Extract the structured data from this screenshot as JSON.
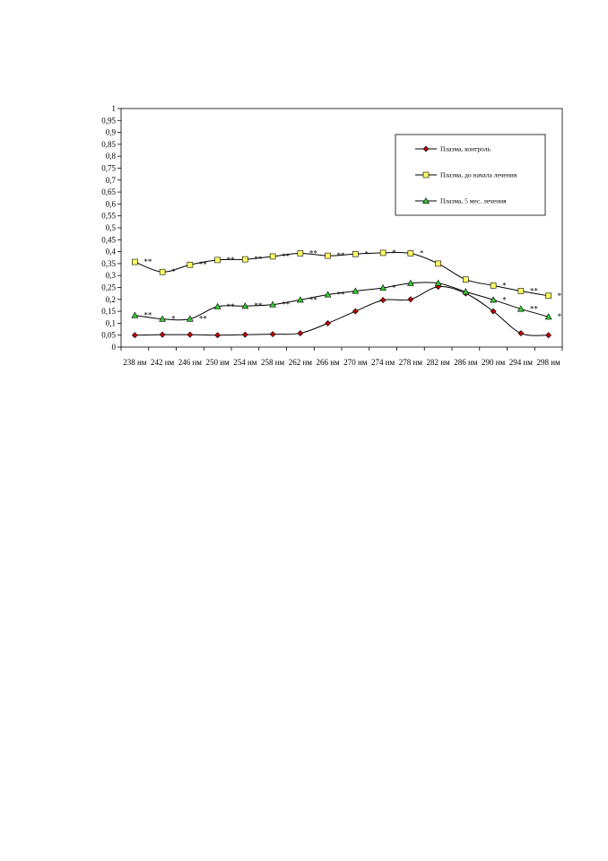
{
  "chart_data": {
    "type": "line",
    "categories": [
      "238 нм",
      "242 нм",
      "246 нм",
      "250 нм",
      "254 нм",
      "258 нм",
      "262 нм",
      "266 нм",
      "270 нм",
      "274 нм",
      "278 нм",
      "282 нм",
      "286 нм",
      "290 нм",
      "294 нм",
      "298 нм"
    ],
    "ylim": [
      0,
      1
    ],
    "yticks": [
      "0",
      "0,05",
      "0,1",
      "0,15",
      "0,2",
      "0,25",
      "0,3",
      "0,35",
      "0,4",
      "0,45",
      "0,5",
      "0,55",
      "0,6",
      "0,65",
      "0,7",
      "0,75",
      "0,8",
      "0,85",
      "0,9",
      "0,95",
      "1"
    ],
    "grid": false,
    "legend_position": "top-right",
    "series": [
      {
        "name": "Плазма, контроль",
        "color": "#c00000",
        "marker": "diamond",
        "values": [
          0.05,
          0.052,
          0.052,
          0.05,
          0.052,
          0.054,
          0.058,
          0.1,
          0.15,
          0.197,
          0.2,
          0.253,
          0.225,
          0.15,
          0.058,
          0.05
        ],
        "annotations": [
          "",
          "",
          "",
          "",
          "",
          "",
          "",
          "",
          "",
          "",
          "",
          "",
          "",
          "",
          "",
          ""
        ]
      },
      {
        "name": "Плазма, до начала лечения",
        "color": "#ffff66",
        "marker": "square",
        "values": [
          0.357,
          0.315,
          0.345,
          0.365,
          0.368,
          0.38,
          0.393,
          0.383,
          0.39,
          0.395,
          0.393,
          0.35,
          0.283,
          0.258,
          0.235,
          0.215
        ],
        "annotations": [
          "**",
          "*",
          "**",
          "**",
          "**",
          "**",
          "**",
          "**",
          "*",
          "*",
          "*",
          "",
          "",
          "*",
          "**",
          "*"
        ]
      },
      {
        "name": "Плазма, 5 мес. лечения",
        "color": "#33cc33",
        "marker": "triangle",
        "values": [
          0.133,
          0.118,
          0.118,
          0.17,
          0.172,
          0.178,
          0.198,
          0.22,
          0.235,
          0.248,
          0.268,
          0.268,
          0.232,
          0.198,
          0.16,
          0.127
        ],
        "annotations": [
          "**",
          "*",
          "**",
          "**",
          "**",
          "**",
          "**",
          "**",
          "",
          "*",
          "",
          "",
          "",
          "*",
          "**",
          "*"
        ]
      }
    ]
  }
}
